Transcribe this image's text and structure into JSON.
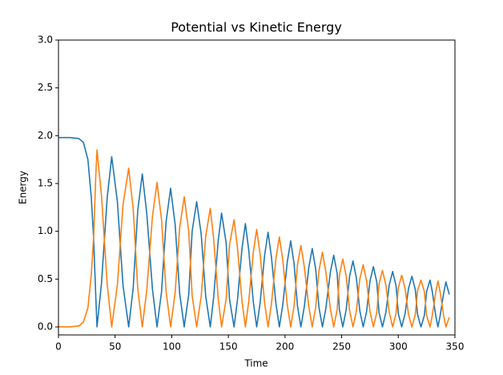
{
  "chart_data": {
    "type": "line",
    "title": "Potential vs Kinetic Energy",
    "x_label": "Time",
    "y_label": "Energy",
    "x": [
      0,
      10,
      18,
      22,
      26,
      29,
      31,
      33,
      34,
      38,
      43,
      47,
      52,
      57,
      62,
      66,
      70,
      74,
      78,
      83,
      87,
      91,
      95,
      99,
      103,
      107,
      111,
      115,
      118,
      122,
      126,
      130,
      134,
      137,
      141,
      144,
      148,
      151,
      155,
      158,
      162,
      165,
      168,
      172,
      175,
      178,
      182,
      185,
      188,
      192,
      195,
      198,
      202,
      205,
      208,
      211,
      214,
      217,
      221,
      224,
      227,
      230,
      233,
      236,
      240,
      243,
      246,
      248,
      251,
      254,
      257,
      260,
      263,
      266,
      269,
      272,
      275,
      278,
      281,
      283,
      286,
      289,
      292,
      295,
      298,
      300,
      303,
      306,
      309,
      312,
      315,
      317,
      320,
      323,
      325,
      328,
      330,
      333,
      335,
      337,
      340,
      342,
      345
    ],
    "series": [
      {
        "color": "#1f77b4",
        "values": [
          1.98,
          1.98,
          1.97,
          1.93,
          1.75,
          1.35,
          0.93,
          0.3,
          0,
          0.46,
          1.35,
          1.78,
          1.31,
          0.43,
          0,
          0.41,
          1.22,
          1.6,
          1.18,
          0.39,
          0,
          0.37,
          1.1,
          1.45,
          1.07,
          0.35,
          0,
          0.34,
          1.0,
          1.31,
          0.97,
          0.32,
          0,
          0.31,
          0.9,
          1.19,
          0.88,
          0.29,
          0,
          0.28,
          0.82,
          1.08,
          0.8,
          0.26,
          0,
          0.25,
          0.75,
          0.99,
          0.73,
          0.24,
          0,
          0.23,
          0.68,
          0.9,
          0.66,
          0.22,
          0,
          0.21,
          0.62,
          0.82,
          0.61,
          0.2,
          0,
          0.19,
          0.57,
          0.75,
          0.56,
          0.18,
          0,
          0.18,
          0.53,
          0.69,
          0.51,
          0.17,
          0,
          0.16,
          0.48,
          0.63,
          0.47,
          0.15,
          0,
          0.15,
          0.44,
          0.58,
          0.43,
          0.14,
          0,
          0.14,
          0.4,
          0.53,
          0.39,
          0.13,
          0,
          0.12,
          0.37,
          0.49,
          0.37,
          0.12,
          0,
          0.12,
          0.35,
          0.47,
          0.34
        ]
      },
      {
        "color": "#ff7f0e",
        "values": [
          0,
          0,
          0.01,
          0.05,
          0.2,
          0.55,
          0.93,
          1.6,
          1.85,
          1.37,
          0.45,
          0,
          0.44,
          1.28,
          1.66,
          1.23,
          0.4,
          0,
          0.39,
          1.16,
          1.51,
          1.12,
          0.37,
          0,
          0.36,
          1.04,
          1.36,
          1.0,
          0.33,
          0,
          0.32,
          0.95,
          1.24,
          0.92,
          0.3,
          0,
          0.29,
          0.86,
          1.12,
          0.83,
          0.27,
          0,
          0.27,
          0.78,
          1.02,
          0.76,
          0.25,
          0,
          0.24,
          0.72,
          0.94,
          0.7,
          0.23,
          0,
          0.22,
          0.65,
          0.85,
          0.63,
          0.21,
          0,
          0.2,
          0.59,
          0.78,
          0.58,
          0.19,
          0,
          0.18,
          0.54,
          0.71,
          0.53,
          0.17,
          0,
          0.17,
          0.5,
          0.65,
          0.48,
          0.16,
          0,
          0.15,
          0.45,
          0.59,
          0.44,
          0.15,
          0,
          0.14,
          0.41,
          0.54,
          0.4,
          0.13,
          0,
          0.13,
          0.38,
          0.49,
          0.37,
          0.12,
          0,
          0.12,
          0.36,
          0.48,
          0.36,
          0.12,
          0,
          0.1
        ]
      }
    ],
    "xlim": [
      0,
      350
    ],
    "xticks": [
      0,
      50,
      100,
      150,
      200,
      250,
      300,
      350
    ],
    "ylim": [
      -0.084,
      3.0
    ],
    "yticks": [
      {
        "value": 0,
        "label": "0.0"
      },
      {
        "value": 0.5,
        "label": "0.5"
      },
      {
        "value": 1,
        "label": "1.0"
      },
      {
        "value": 1.5,
        "label": "1.5"
      },
      {
        "value": 2,
        "label": "2.0"
      },
      {
        "value": 2.5,
        "label": "2.5"
      },
      {
        "value": 3,
        "label": "3.0"
      }
    ]
  }
}
